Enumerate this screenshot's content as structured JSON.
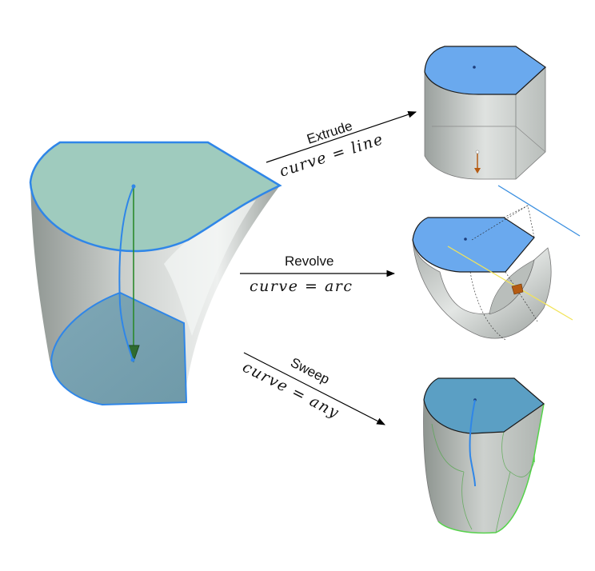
{
  "operations": [
    {
      "label": "Extrude",
      "formula": "curve = line"
    },
    {
      "label": "Revolve",
      "formula": "curve = arc"
    },
    {
      "label": "Sweep",
      "formula": "curve = any"
    }
  ],
  "colors": {
    "profile_face": "#9fcbbe",
    "edge_blue": "#2f86e8",
    "face_blue": "#6aa9ee",
    "body_gray": "#c3c8c6",
    "path_green": "#2c8a2c",
    "sweep_edge_green": "#55d34a",
    "axis_yellow": "#f2e45a",
    "handle_orange": "#b55b12"
  }
}
